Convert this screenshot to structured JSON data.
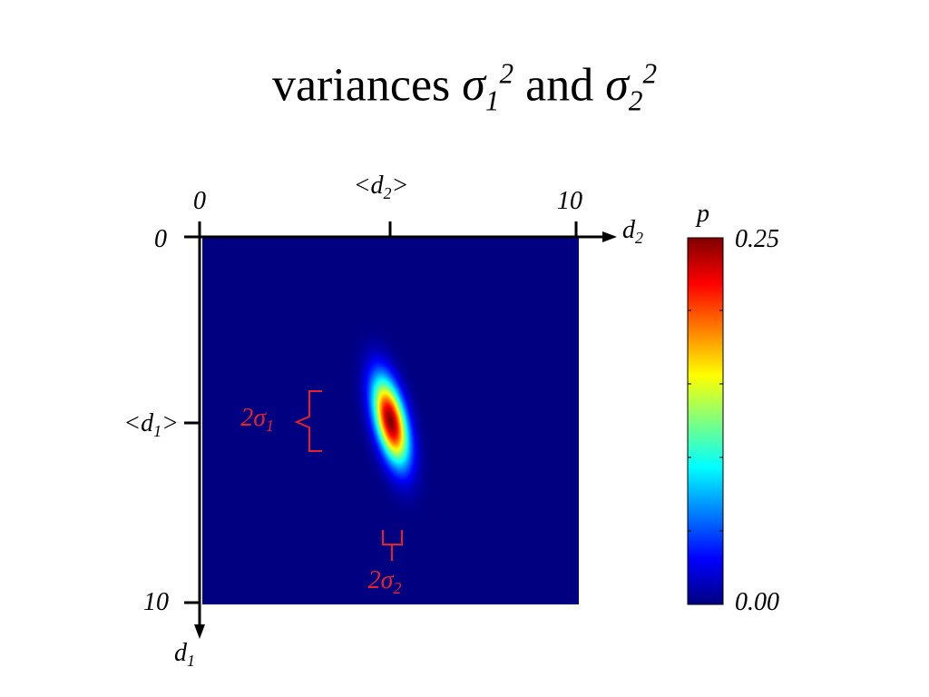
{
  "title": {
    "word": "variances",
    "sym1": "σ",
    "sym1_sub": "1",
    "sym1_sup": "2",
    "conj": "and",
    "sym2": "σ",
    "sym2_sub": "2",
    "sym2_sup": "2"
  },
  "chart_data": {
    "type": "heatmap",
    "description_free": true,
    "x_axis": {
      "name": "d",
      "name_sub": "2",
      "range": [
        0,
        10
      ],
      "tick_labels": [
        "0",
        "10"
      ],
      "mean_label": {
        "prefix": "<d",
        "sub": "2",
        "suffix": ">"
      },
      "mean": 5
    },
    "y_axis": {
      "name": "d",
      "name_sub": "1",
      "range": [
        0,
        10
      ],
      "inverted": true,
      "tick_labels": [
        "0",
        "10"
      ],
      "mean_label": {
        "prefix": "<d",
        "sub": "1",
        "suffix": ">"
      },
      "mean": 5
    },
    "distribution": {
      "mean_d1": 5,
      "mean_d2": 5,
      "sigma_d1": 0.8,
      "sigma_d2": 0.28,
      "tilt_d2_per_d1": 0.2,
      "peak_p": 0.25
    },
    "annotations": {
      "sigma1_label": {
        "prefix": "2σ",
        "sub": "1"
      },
      "sigma2_label": {
        "prefix": "2σ",
        "sub": "2"
      },
      "color": "#e8202a"
    },
    "colorbar": {
      "label": "p",
      "max_label": "0.25",
      "min_label": "0.00",
      "range": [
        0,
        0.25
      ],
      "colormap": "jet"
    }
  },
  "colors": {
    "background": "#ffffff",
    "axis": "#000000",
    "annotation": "#e8202a",
    "jet_low": "#000080",
    "jet_high": "#800000"
  }
}
